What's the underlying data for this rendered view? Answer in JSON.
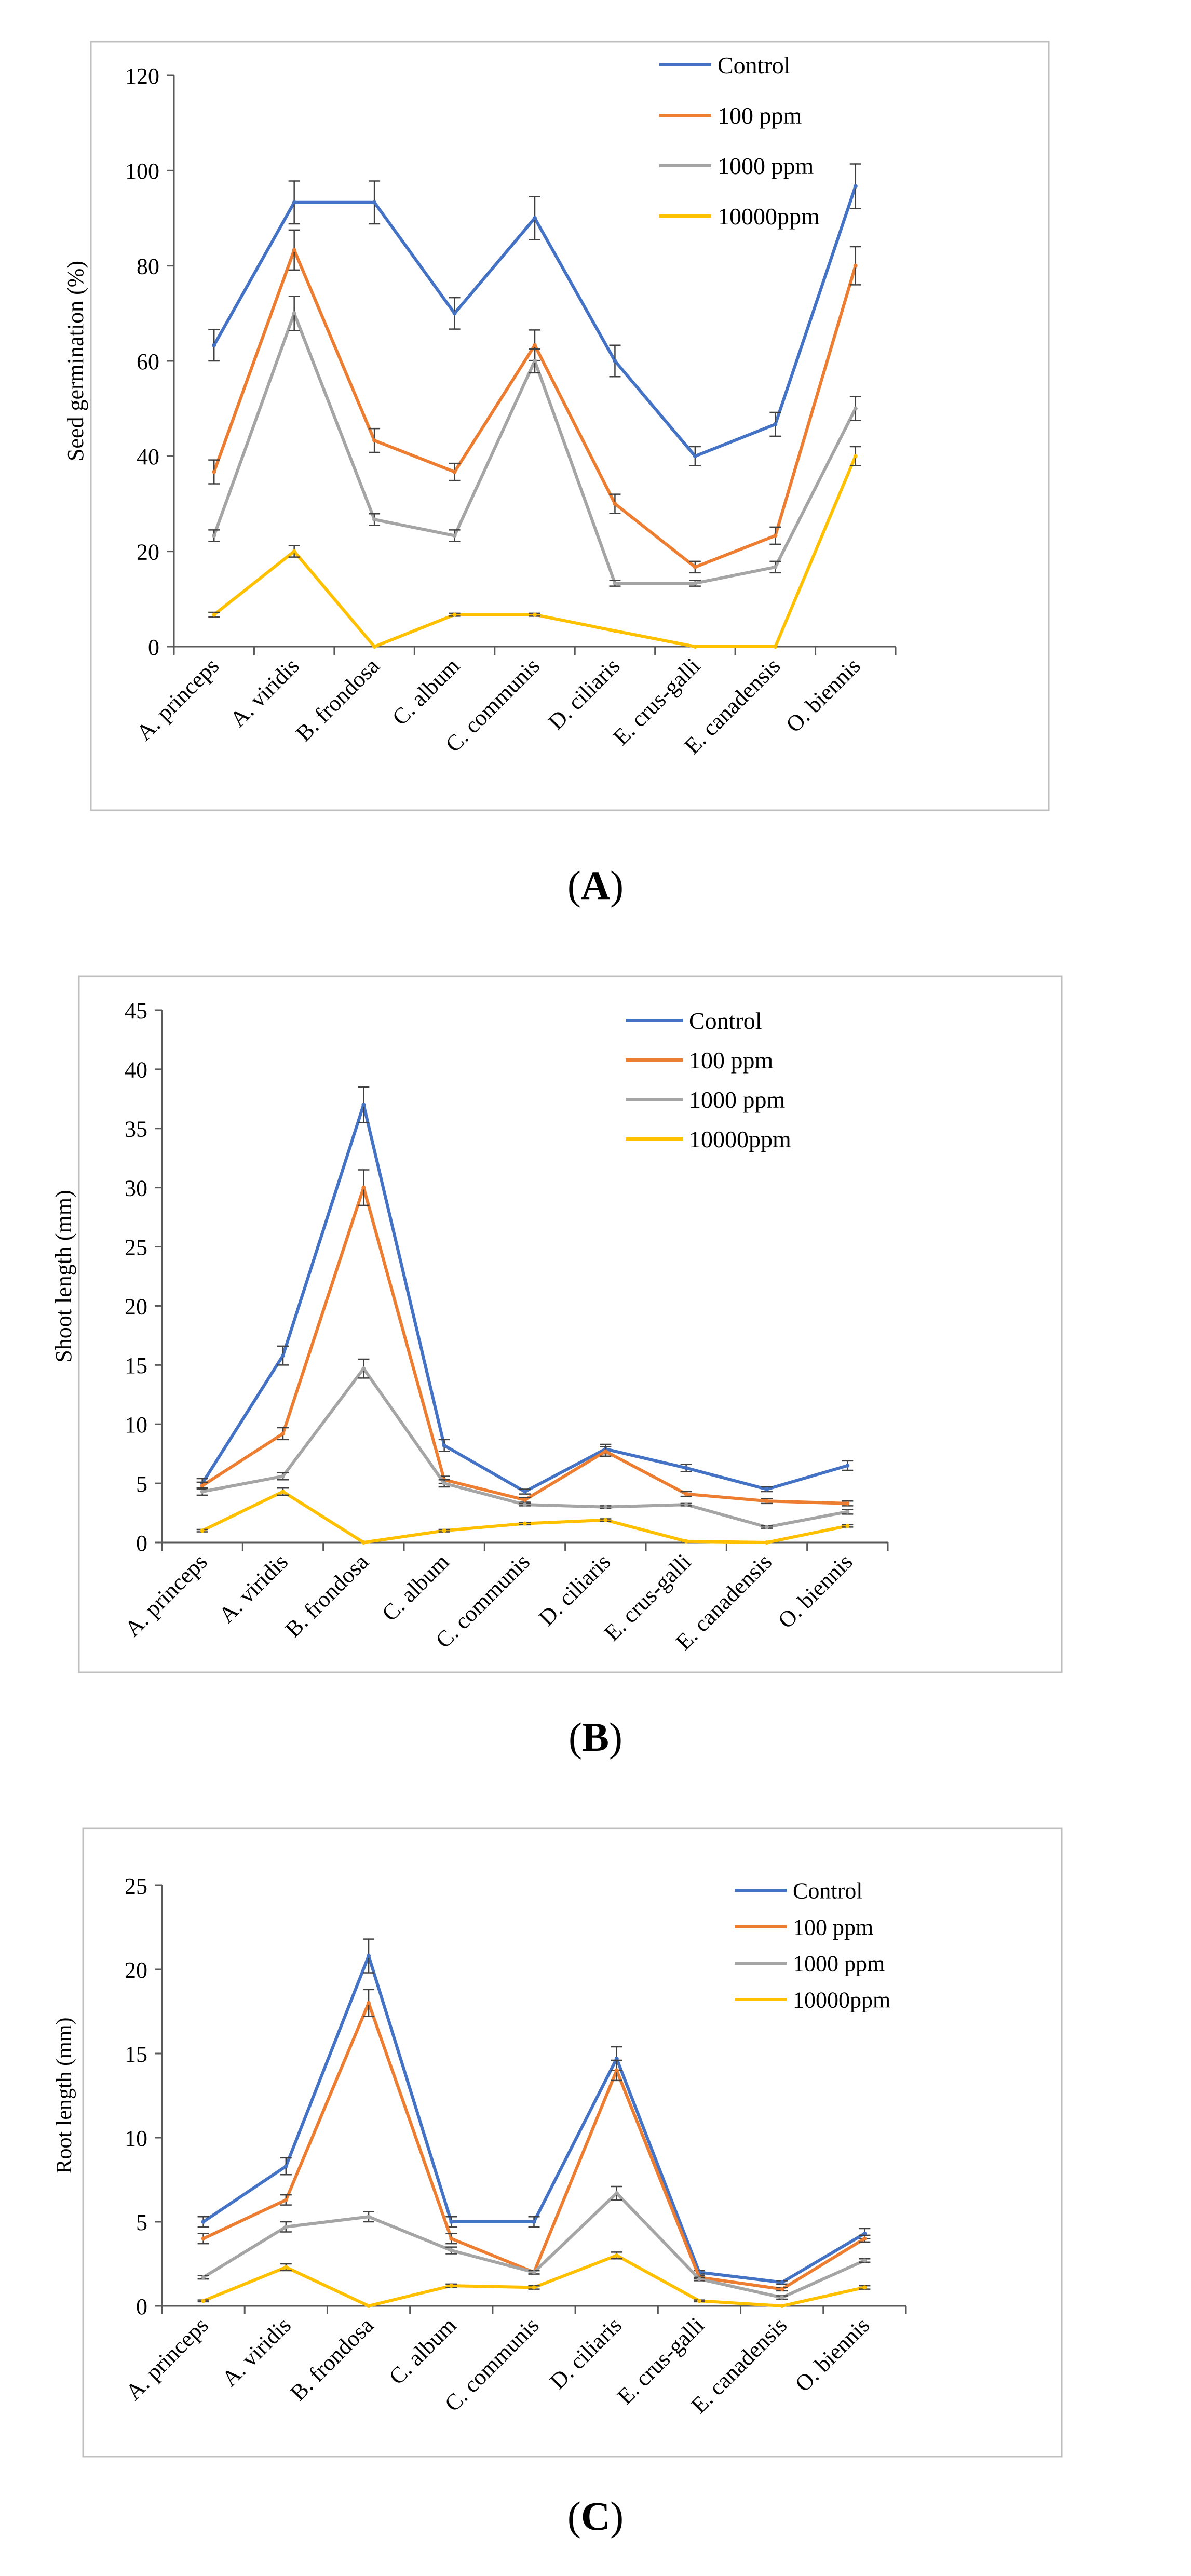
{
  "colors": {
    "control": "#4472C4",
    "ppm100": "#ED7D31",
    "ppm1000": "#A5A5A5",
    "ppm10000": "#FFC000"
  },
  "chart_data": [
    {
      "type": "line",
      "panel": "A",
      "ylabel": "Seed germination (%)",
      "xlabel": "",
      "ylim": [
        0,
        120
      ],
      "yticks": [
        0,
        20,
        40,
        60,
        80,
        100,
        120
      ],
      "categories": [
        "A. princeps",
        "A. viridis",
        "B. frondosa",
        "C. album",
        "C. communis",
        "D. ciliaris",
        "E. crus-galli",
        "E. canadensis",
        "O. biennis"
      ],
      "legend_position": "top-right",
      "series": [
        {
          "name": "Control",
          "key": "control",
          "values": [
            63.3,
            93.3,
            93.3,
            70,
            90,
            60,
            40,
            46.7,
            96.7
          ],
          "errors": [
            3.3,
            4.5,
            4.5,
            3.3,
            4.5,
            3.3,
            2,
            2.5,
            4.7
          ]
        },
        {
          "name": "100 ppm",
          "key": "ppm100",
          "values": [
            36.7,
            83.3,
            43.3,
            36.7,
            63.3,
            30,
            16.7,
            23.3,
            80
          ],
          "errors": [
            2.5,
            4.2,
            2.5,
            1.8,
            3.2,
            2,
            1.2,
            1.8,
            4
          ]
        },
        {
          "name": "1000 ppm",
          "key": "ppm1000",
          "values": [
            23.3,
            70,
            26.7,
            23.3,
            60,
            13.3,
            13.3,
            16.7,
            50
          ],
          "errors": [
            1.2,
            3.6,
            1.2,
            1.2,
            2.5,
            0.6,
            0.6,
            1.2,
            2.5
          ]
        },
        {
          "name": "10000ppm",
          "key": "ppm10000",
          "values": [
            6.7,
            20,
            0,
            6.7,
            6.7,
            3.3,
            0,
            0,
            40
          ],
          "errors": [
            0.5,
            1.2,
            0,
            0.3,
            0.3,
            0,
            0,
            0,
            2
          ]
        }
      ]
    },
    {
      "type": "line",
      "panel": "B",
      "ylabel": "Shoot length (mm)",
      "xlabel": "",
      "ylim": [
        0,
        45
      ],
      "yticks": [
        0,
        5,
        10,
        15,
        20,
        25,
        30,
        35,
        40,
        45
      ],
      "categories": [
        "A. princeps",
        "A. viridis",
        "B. frondosa",
        "C. album",
        "C. communis",
        "D. ciliaris",
        "E. crus-galli",
        "E. canadensis",
        "O. biennis"
      ],
      "legend_position": "top-right",
      "series": [
        {
          "name": "Control",
          "key": "control",
          "values": [
            5,
            15.8,
            37,
            8.2,
            4.3,
            7.9,
            6.3,
            4.5,
            6.5
          ],
          "errors": [
            0.4,
            0.8,
            1.5,
            0.5,
            0.2,
            0.4,
            0.3,
            0.2,
            0.4
          ]
        },
        {
          "name": "100 ppm",
          "key": "ppm100",
          "values": [
            4.8,
            9.2,
            30,
            5.3,
            3.6,
            7.7,
            4.1,
            3.5,
            3.3
          ],
          "errors": [
            0.3,
            0.5,
            1.5,
            0.3,
            0.2,
            0.4,
            0.2,
            0.2,
            0.2
          ]
        },
        {
          "name": "1000 ppm",
          "key": "ppm1000",
          "values": [
            4.3,
            5.6,
            14.7,
            5,
            3.2,
            3,
            3.2,
            1.3,
            2.6
          ],
          "errors": [
            0.3,
            0.3,
            0.8,
            0.3,
            0.1,
            0.1,
            0.1,
            0.1,
            0.2
          ]
        },
        {
          "name": "10000ppm",
          "key": "ppm10000",
          "values": [
            1,
            4.3,
            0,
            1,
            1.6,
            1.9,
            0.1,
            0,
            1.4
          ],
          "errors": [
            0.1,
            0.3,
            0,
            0.1,
            0.1,
            0.1,
            0,
            0,
            0.1
          ]
        }
      ]
    },
    {
      "type": "line",
      "panel": "C",
      "ylabel": "Root length (mm)",
      "xlabel": "",
      "ylim": [
        0,
        25
      ],
      "yticks": [
        0,
        5,
        10,
        15,
        20,
        25
      ],
      "categories": [
        "A. princeps",
        "A. viridis",
        "B. frondosa",
        "C. album",
        "C. communis",
        "D. ciliaris",
        "E. crus-galli",
        "E. canadensis",
        "O. biennis"
      ],
      "legend_position": "top-right",
      "series": [
        {
          "name": "Control",
          "key": "control",
          "values": [
            5,
            8.3,
            20.8,
            5,
            5,
            14.7,
            2,
            1.4,
            4.3
          ],
          "errors": [
            0.3,
            0.5,
            1,
            0.3,
            0.3,
            0.7,
            0.1,
            0.1,
            0.3
          ]
        },
        {
          "name": "100 ppm",
          "key": "ppm100",
          "values": [
            4,
            6.3,
            18,
            4,
            2,
            14,
            1.7,
            1,
            4
          ],
          "errors": [
            0.3,
            0.3,
            0.8,
            0.3,
            0.1,
            0.6,
            0.1,
            0.1,
            0.2
          ]
        },
        {
          "name": "1000 ppm",
          "key": "ppm1000",
          "values": [
            1.7,
            4.7,
            5.3,
            3.3,
            2,
            6.7,
            1.6,
            0.5,
            2.7
          ],
          "errors": [
            0.1,
            0.3,
            0.3,
            0.2,
            0.1,
            0.4,
            0.1,
            0.1,
            0.1
          ]
        },
        {
          "name": "10000ppm",
          "key": "ppm10000",
          "values": [
            0.3,
            2.3,
            0,
            1.2,
            1.1,
            3,
            0.3,
            0,
            1.1
          ],
          "errors": [
            0.05,
            0.2,
            0,
            0.1,
            0.1,
            0.2,
            0.05,
            0,
            0.1
          ]
        }
      ]
    }
  ],
  "panel_labels": {
    "a": {
      "open": "(",
      "letter": "A",
      "close": ")"
    },
    "b": {
      "open": "(",
      "letter": "B",
      "close": ")"
    },
    "c": {
      "open": "(",
      "letter": "C",
      "close": ")"
    }
  }
}
